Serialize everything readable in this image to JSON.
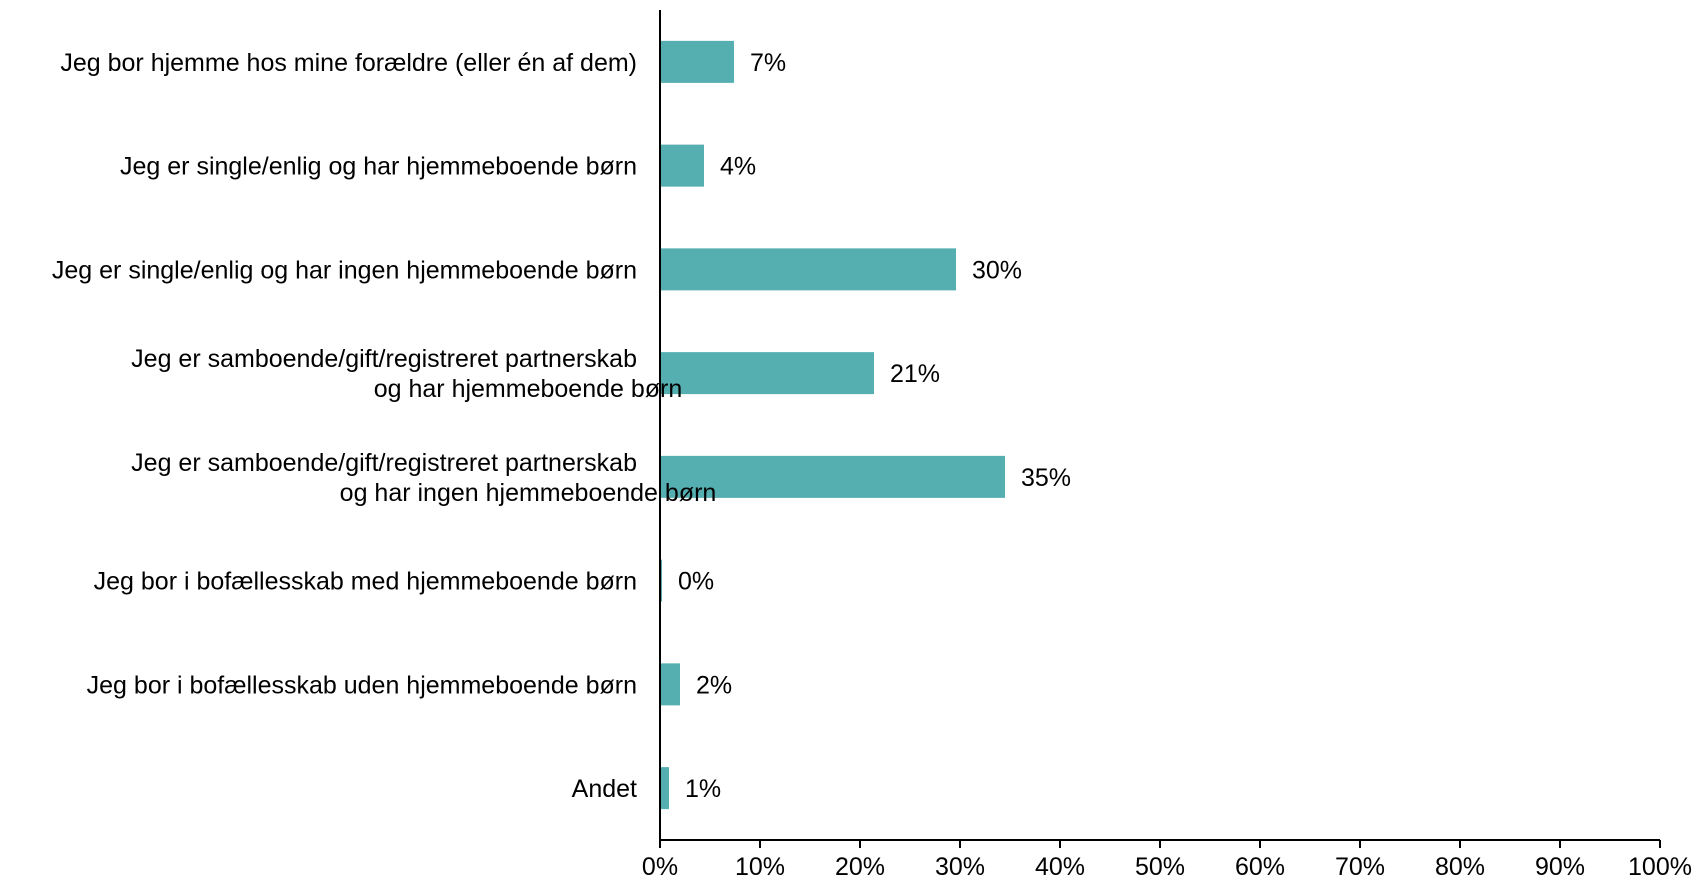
{
  "chart_data": {
    "type": "bar",
    "orientation": "horizontal",
    "categories": [
      [
        "Jeg bor hjemme hos mine forældre (eller én af dem)"
      ],
      [
        "Jeg er single/enlig og har hjemmeboende børn"
      ],
      [
        "Jeg er single/enlig og har ingen hjemmeboende børn"
      ],
      [
        "Jeg er samboende/gift/registreret partnerskab",
        "og har hjemmeboende børn"
      ],
      [
        "Jeg er samboende/gift/registreret partnerskab",
        "og har ingen hjemmeboende børn"
      ],
      [
        "Jeg bor i bofællesskab med hjemmeboende børn"
      ],
      [
        "Jeg bor i bofællesskab uden hjemmeboende børn"
      ],
      [
        "Andet"
      ]
    ],
    "values": [
      7.4,
      4.4,
      29.6,
      21.4,
      34.5,
      0.2,
      2.0,
      0.9
    ],
    "data_labels": [
      "7%",
      "4%",
      "30%",
      "21%",
      "35%",
      "0%",
      "2%",
      "1%"
    ],
    "title": "",
    "xlabel": "",
    "ylabel": "",
    "xlim": [
      0,
      100
    ],
    "xticks": [
      0,
      10,
      20,
      30,
      40,
      50,
      60,
      70,
      80,
      90,
      100
    ],
    "xtick_labels": [
      "0%",
      "10%",
      "20%",
      "30%",
      "40%",
      "50%",
      "60%",
      "70%",
      "80%",
      "90%",
      "100%"
    ],
    "grid": false,
    "legend": "none",
    "bar_color": "#55AEB0"
  }
}
